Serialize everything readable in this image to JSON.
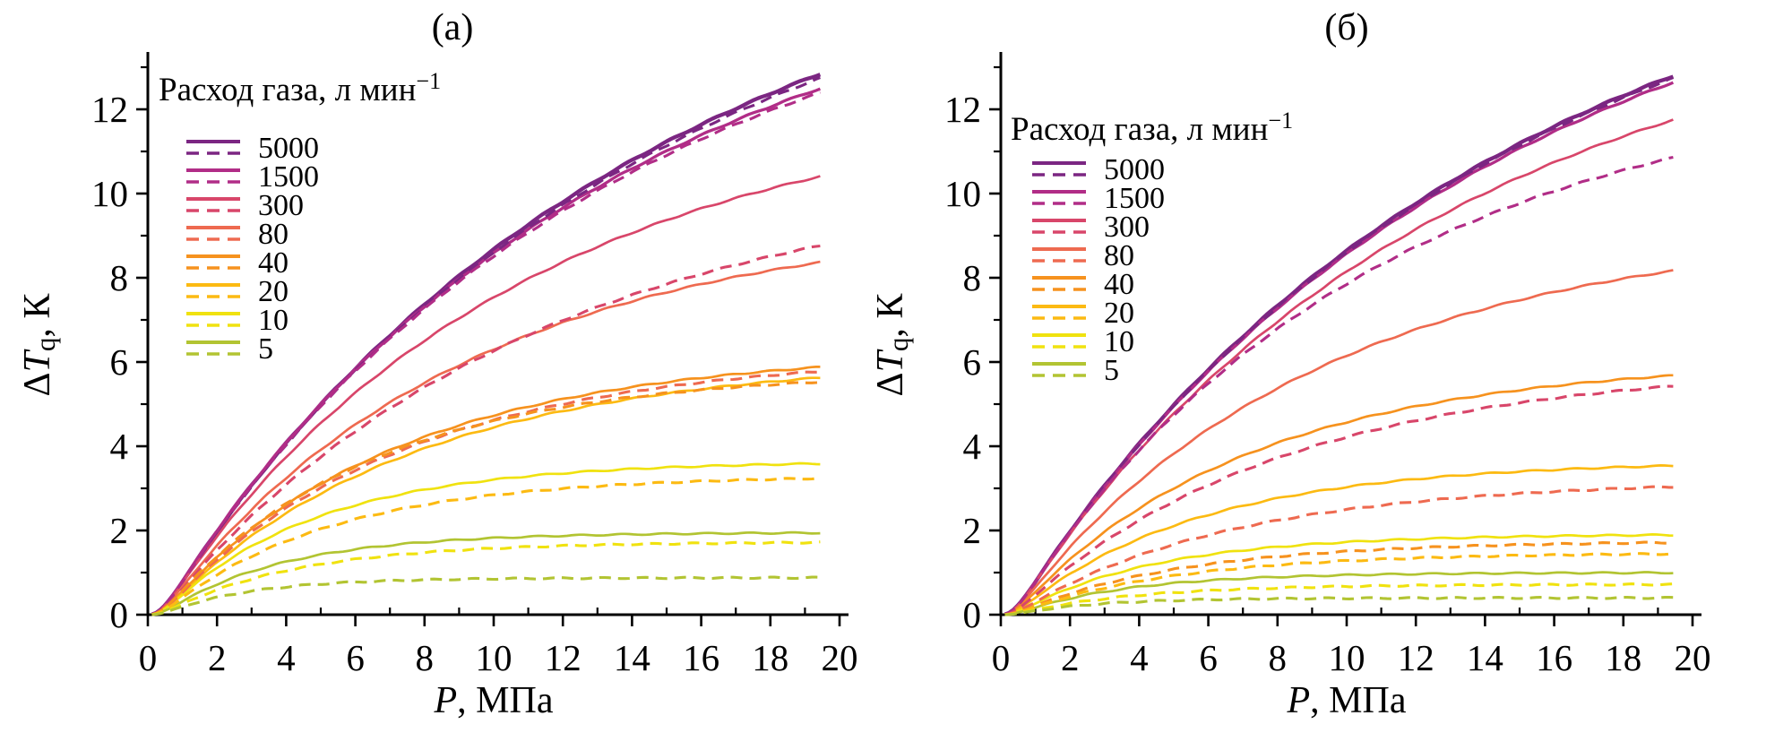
{
  "figure_title": "",
  "chart_data": {
    "type": "line",
    "x_shared": {
      "min": 0,
      "max": 20,
      "units": "МПа"
    },
    "panels": [
      {
        "panel_label": "(а)",
        "x_axis": {
          "label_var": "P",
          "label_unit": ", МПа",
          "min": 0,
          "max": 20,
          "major_ticks": [
            0,
            2,
            4,
            6,
            8,
            10,
            12,
            14,
            16,
            18,
            20
          ],
          "minor_step": 1
        },
        "y_axis": {
          "label_delta": "Δ",
          "label_var": "T",
          "label_sub": "q",
          "label_unit": ", К",
          "min": 0,
          "max": 12,
          "major_ticks": [
            0,
            2,
            4,
            6,
            8,
            10,
            12
          ],
          "minor_step": 1
        },
        "legend": {
          "title": "Расход газа, л мин",
          "title_superscript": "−1"
        },
        "series": [
          {
            "flow_rate": "5000",
            "color": "#7b2682",
            "solid": {
              "end_value_K": 12.9,
              "tau": 14.0
            },
            "dashed": {
              "end_value_K": 12.8,
              "tau": 14.0
            }
          },
          {
            "flow_rate": "1500",
            "color": "#b12d87",
            "solid": {
              "end_value_K": 12.55,
              "tau": 13.0
            },
            "dashed": {
              "end_value_K": 12.45,
              "tau": 13.0
            }
          },
          {
            "flow_rate": "300",
            "color": "#d8466a",
            "solid": {
              "end_value_K": 10.45,
              "tau": 10.5
            },
            "dashed": {
              "end_value_K": 8.8,
              "tau": 11.0
            }
          },
          {
            "flow_rate": "80",
            "color": "#ee6a50",
            "solid": {
              "end_value_K": 8.4,
              "tau": 9.0
            },
            "dashed": {
              "end_value_K": 5.8,
              "tau": 7.2
            }
          },
          {
            "flow_rate": "40",
            "color": "#f6921e",
            "solid": {
              "end_value_K": 5.9,
              "tau": 7.0
            },
            "dashed": {
              "end_value_K": 5.55,
              "tau": 6.2
            }
          },
          {
            "flow_rate": "20",
            "color": "#fcba12",
            "solid": {
              "end_value_K": 5.65,
              "tau": 7.5
            },
            "dashed": {
              "end_value_K": 3.25,
              "tau": 5.0
            }
          },
          {
            "flow_rate": "10",
            "color": "#f0e20f",
            "solid": {
              "end_value_K": 3.6,
              "tau": 4.6
            },
            "dashed": {
              "end_value_K": 1.72,
              "tau": 4.0
            }
          },
          {
            "flow_rate": "5",
            "color": "#b2c432",
            "solid": {
              "end_value_K": 1.95,
              "tau": 3.6
            },
            "dashed": {
              "end_value_K": 0.88,
              "tau": 2.6
            }
          }
        ]
      },
      {
        "panel_label": "(б)",
        "x_axis": {
          "label_var": "P",
          "label_unit": ", МПа",
          "min": 0,
          "max": 20,
          "major_ticks": [
            0,
            2,
            4,
            6,
            8,
            10,
            12,
            14,
            16,
            18,
            20
          ],
          "minor_step": 1
        },
        "y_axis": {
          "label_delta": "Δ",
          "label_var": "T",
          "label_sub": "q",
          "label_unit": ", К",
          "min": 0,
          "max": 12,
          "major_ticks": [
            0,
            2,
            4,
            6,
            8,
            10,
            12
          ],
          "minor_step": 1
        },
        "legend": {
          "title": "Расход газа, л мин",
          "title_superscript": "−1"
        },
        "series": [
          {
            "flow_rate": "5000",
            "color": "#7b2682",
            "solid": {
              "end_value_K": 12.85,
              "tau": 14.0
            },
            "dashed": {
              "end_value_K": 12.8,
              "tau": 14.0
            }
          },
          {
            "flow_rate": "1500",
            "color": "#b12d87",
            "solid": {
              "end_value_K": 12.7,
              "tau": 13.8
            },
            "dashed": {
              "end_value_K": 10.9,
              "tau": 10.5
            }
          },
          {
            "flow_rate": "300",
            "color": "#d8466a",
            "solid": {
              "end_value_K": 11.8,
              "tau": 12.5
            },
            "dashed": {
              "end_value_K": 5.45,
              "tau": 8.0
            }
          },
          {
            "flow_rate": "80",
            "color": "#ee6a50",
            "solid": {
              "end_value_K": 8.2,
              "tau": 9.0
            },
            "dashed": {
              "end_value_K": 3.05,
              "tau": 6.5
            }
          },
          {
            "flow_rate": "40",
            "color": "#f6921e",
            "solid": {
              "end_value_K": 5.7,
              "tau": 7.0
            },
            "dashed": {
              "end_value_K": 1.72,
              "tau": 5.0
            }
          },
          {
            "flow_rate": "20",
            "color": "#fcba12",
            "solid": {
              "end_value_K": 3.55,
              "tau": 5.5
            },
            "dashed": {
              "end_value_K": 1.45,
              "tau": 4.8
            }
          },
          {
            "flow_rate": "10",
            "color": "#f0e20f",
            "solid": {
              "end_value_K": 1.9,
              "tau": 4.2
            },
            "dashed": {
              "end_value_K": 0.72,
              "tau": 3.6
            }
          },
          {
            "flow_rate": "5",
            "color": "#b2c432",
            "solid": {
              "end_value_K": 1.0,
              "tau": 3.4
            },
            "dashed": {
              "end_value_K": 0.4,
              "tau": 2.4
            }
          }
        ]
      }
    ],
    "curve_model": "dT(P) = end_value_K * (1-exp(-P/tau))/(1-exp(-19.5/tau)) * P^1.7/(P^1.7+0.5), P from 0.12 to 19.5"
  }
}
